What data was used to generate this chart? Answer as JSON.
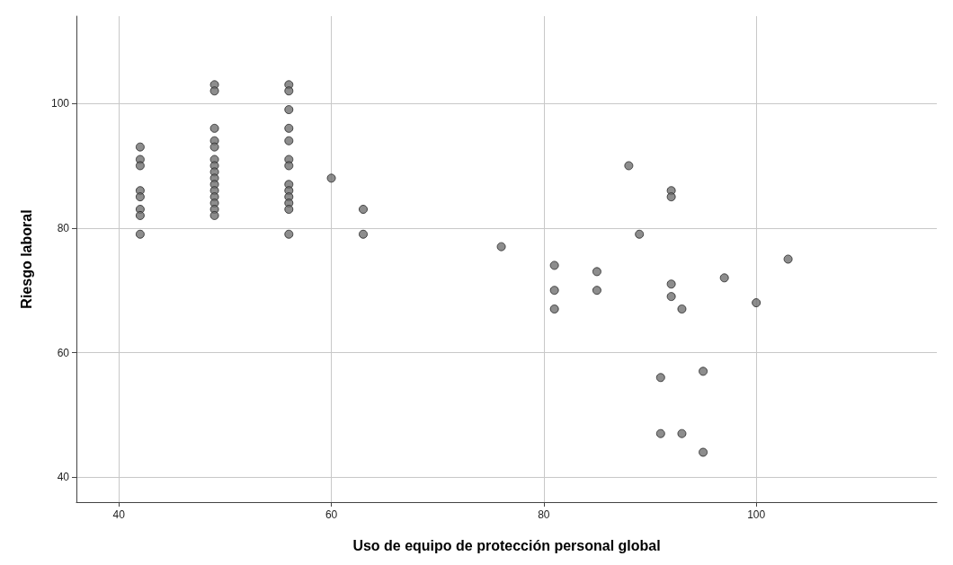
{
  "chart_data": {
    "type": "scatter",
    "xlabel": "Uso de equipo de protección personal global",
    "ylabel": "Riesgo laboral",
    "x": [
      42,
      42,
      42,
      42,
      42,
      42,
      42,
      42,
      49,
      49,
      49,
      49,
      49,
      49,
      49,
      49,
      49,
      49,
      49,
      49,
      49,
      49,
      49,
      56,
      56,
      56,
      56,
      56,
      56,
      56,
      56,
      56,
      56,
      56,
      56,
      56,
      60,
      63,
      63,
      76,
      81,
      81,
      81,
      85,
      85,
      88,
      89,
      92,
      92,
      92,
      92,
      93,
      93,
      91,
      91,
      95,
      95,
      97,
      100,
      103
    ],
    "values": [
      93,
      91,
      90,
      86,
      85,
      83,
      82,
      79,
      103,
      102,
      96,
      94,
      93,
      91,
      90,
      89,
      88,
      87,
      86,
      85,
      84,
      83,
      82,
      103,
      102,
      99,
      96,
      94,
      91,
      90,
      87,
      86,
      85,
      84,
      83,
      79,
      88,
      83,
      79,
      77,
      74,
      70,
      67,
      73,
      70,
      90,
      79,
      86,
      85,
      71,
      69,
      67,
      47,
      56,
      47,
      57,
      44,
      72,
      68,
      75
    ],
    "color": "#707070",
    "marker": "circle",
    "grid": true,
    "xlim": [
      36,
      117
    ],
    "xticks": [
      40,
      60,
      80,
      100
    ],
    "ylim": [
      36,
      114
    ],
    "yticks": [
      40,
      60,
      80,
      100
    ]
  }
}
